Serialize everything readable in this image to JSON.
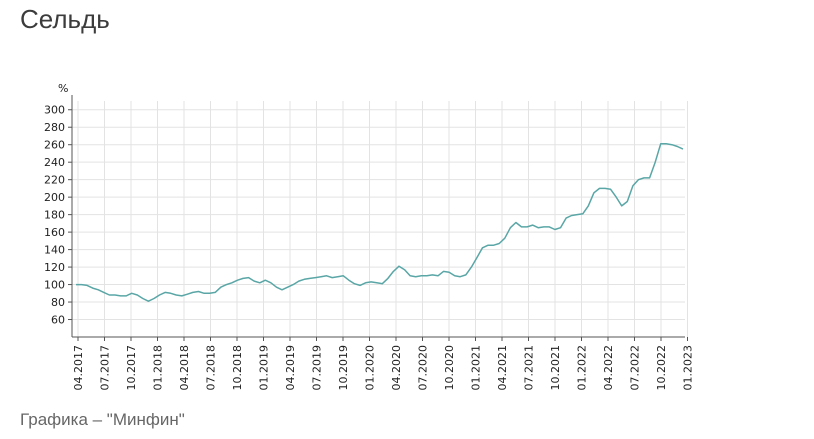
{
  "title": "Сельдь",
  "caption": "Графика – \"Минфин\"",
  "chart_data": {
    "type": "line",
    "title": "",
    "ylabel": "%",
    "xlabel": "",
    "ylim": [
      40,
      310
    ],
    "yticks": [
      60,
      80,
      100,
      120,
      140,
      160,
      180,
      200,
      220,
      240,
      260,
      280,
      300
    ],
    "grid": true,
    "line_color": "#5aa6a6",
    "x_tick_labels": [
      "04.2017",
      "07.2017",
      "10.2017",
      "01.2018",
      "04.2018",
      "07.2018",
      "10.2018",
      "01.2019",
      "04.2019",
      "07.2019",
      "10.2019",
      "01.2020",
      "04.2020",
      "07.2020",
      "10.2020",
      "01.2021",
      "04.2021",
      "07.2021",
      "10.2021",
      "01.2022",
      "04.2022",
      "07.2022",
      "10.2022",
      "01.2023"
    ],
    "series": [
      {
        "values": [
          100,
          100,
          99,
          96,
          94,
          91,
          88,
          88,
          87,
          87,
          90,
          88,
          84,
          81,
          84,
          88,
          91,
          90,
          88,
          87,
          89,
          91,
          92,
          90,
          90,
          91,
          97,
          100,
          102,
          105,
          107,
          108,
          104,
          102,
          105,
          102,
          97,
          94,
          97,
          100,
          104,
          106,
          107,
          108,
          109,
          110,
          108,
          109,
          110,
          105,
          101,
          99,
          102,
          103,
          102,
          101,
          107,
          115,
          121,
          117,
          110,
          109,
          110,
          110,
          111,
          110,
          115,
          114,
          110,
          109,
          111,
          120,
          131,
          142,
          145,
          145,
          147,
          153,
          165,
          171,
          166,
          166,
          168,
          165,
          166,
          166,
          163,
          165,
          176,
          179,
          180,
          181,
          190,
          205,
          210,
          210,
          209,
          200,
          190,
          195,
          213,
          220,
          222,
          222,
          240,
          261,
          261,
          260,
          258,
          255
        ]
      }
    ]
  }
}
